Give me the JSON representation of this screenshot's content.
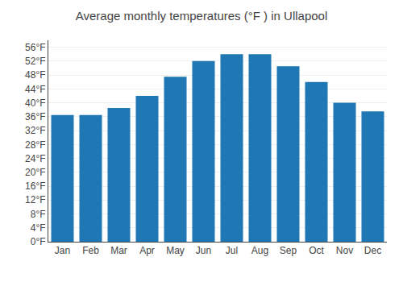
{
  "chart_data": {
    "type": "bar",
    "title": "Average monthly temperatures (°F ) in Ullapool",
    "categories": [
      "Jan",
      "Feb",
      "Mar",
      "Apr",
      "May",
      "Jun",
      "Jul",
      "Aug",
      "Sep",
      "Oct",
      "Nov",
      "Dec"
    ],
    "values": [
      36.5,
      36.5,
      38.5,
      42.0,
      47.5,
      52.0,
      54.0,
      54.0,
      50.5,
      46.0,
      40.0,
      37.5
    ],
    "ylim": [
      0,
      58
    ],
    "yticks": [
      {
        "value": 0,
        "label": "0°F"
      },
      {
        "value": 4,
        "label": "4°F"
      },
      {
        "value": 8,
        "label": "8°F"
      },
      {
        "value": 12,
        "label": "12°F"
      },
      {
        "value": 16,
        "label": "16°F"
      },
      {
        "value": 20,
        "label": "20°F"
      },
      {
        "value": 24,
        "label": "24°F"
      },
      {
        "value": 28,
        "label": "28°F"
      },
      {
        "value": 32,
        "label": "32°F"
      },
      {
        "value": 36,
        "label": "36°F"
      },
      {
        "value": 40,
        "label": "40°F"
      },
      {
        "value": 44,
        "label": "44°F"
      },
      {
        "value": 48,
        "label": "48°F"
      },
      {
        "value": 52,
        "label": "52°F"
      },
      {
        "value": 56,
        "label": "56°F"
      }
    ],
    "grid": true
  }
}
